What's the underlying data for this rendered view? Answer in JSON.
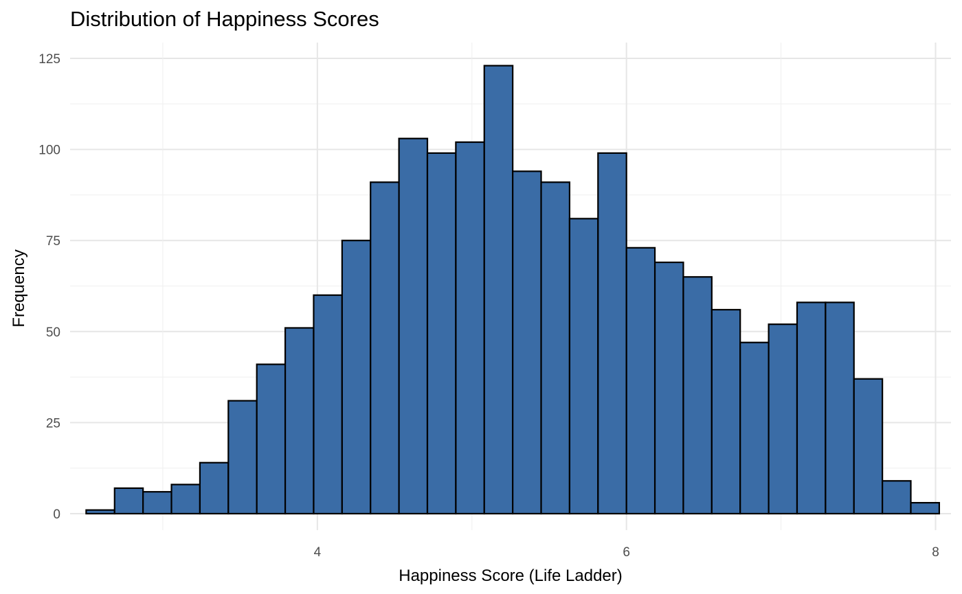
{
  "chart_data": {
    "type": "bar",
    "subtype": "histogram",
    "title": "Distribution of Happiness Scores",
    "xlabel": "Happiness Score (Life Ladder)",
    "ylabel": "Frequency",
    "xlim": [
      2.4,
      8.1
    ],
    "ylim": [
      0,
      125
    ],
    "x_ticks": [
      4,
      6,
      8
    ],
    "y_ticks": [
      0,
      25,
      50,
      75,
      100,
      125
    ],
    "bin_width": 0.184,
    "bin_start": 2.504,
    "values": [
      1,
      7,
      6,
      8,
      14,
      31,
      41,
      51,
      60,
      75,
      91,
      103,
      99,
      102,
      123,
      94,
      91,
      81,
      99,
      73,
      69,
      65,
      56,
      47,
      52,
      58,
      58,
      37,
      9,
      3
    ],
    "fill_color": "#3a6ca6",
    "edge_color": "#000000",
    "grid": true,
    "legend": "none"
  }
}
